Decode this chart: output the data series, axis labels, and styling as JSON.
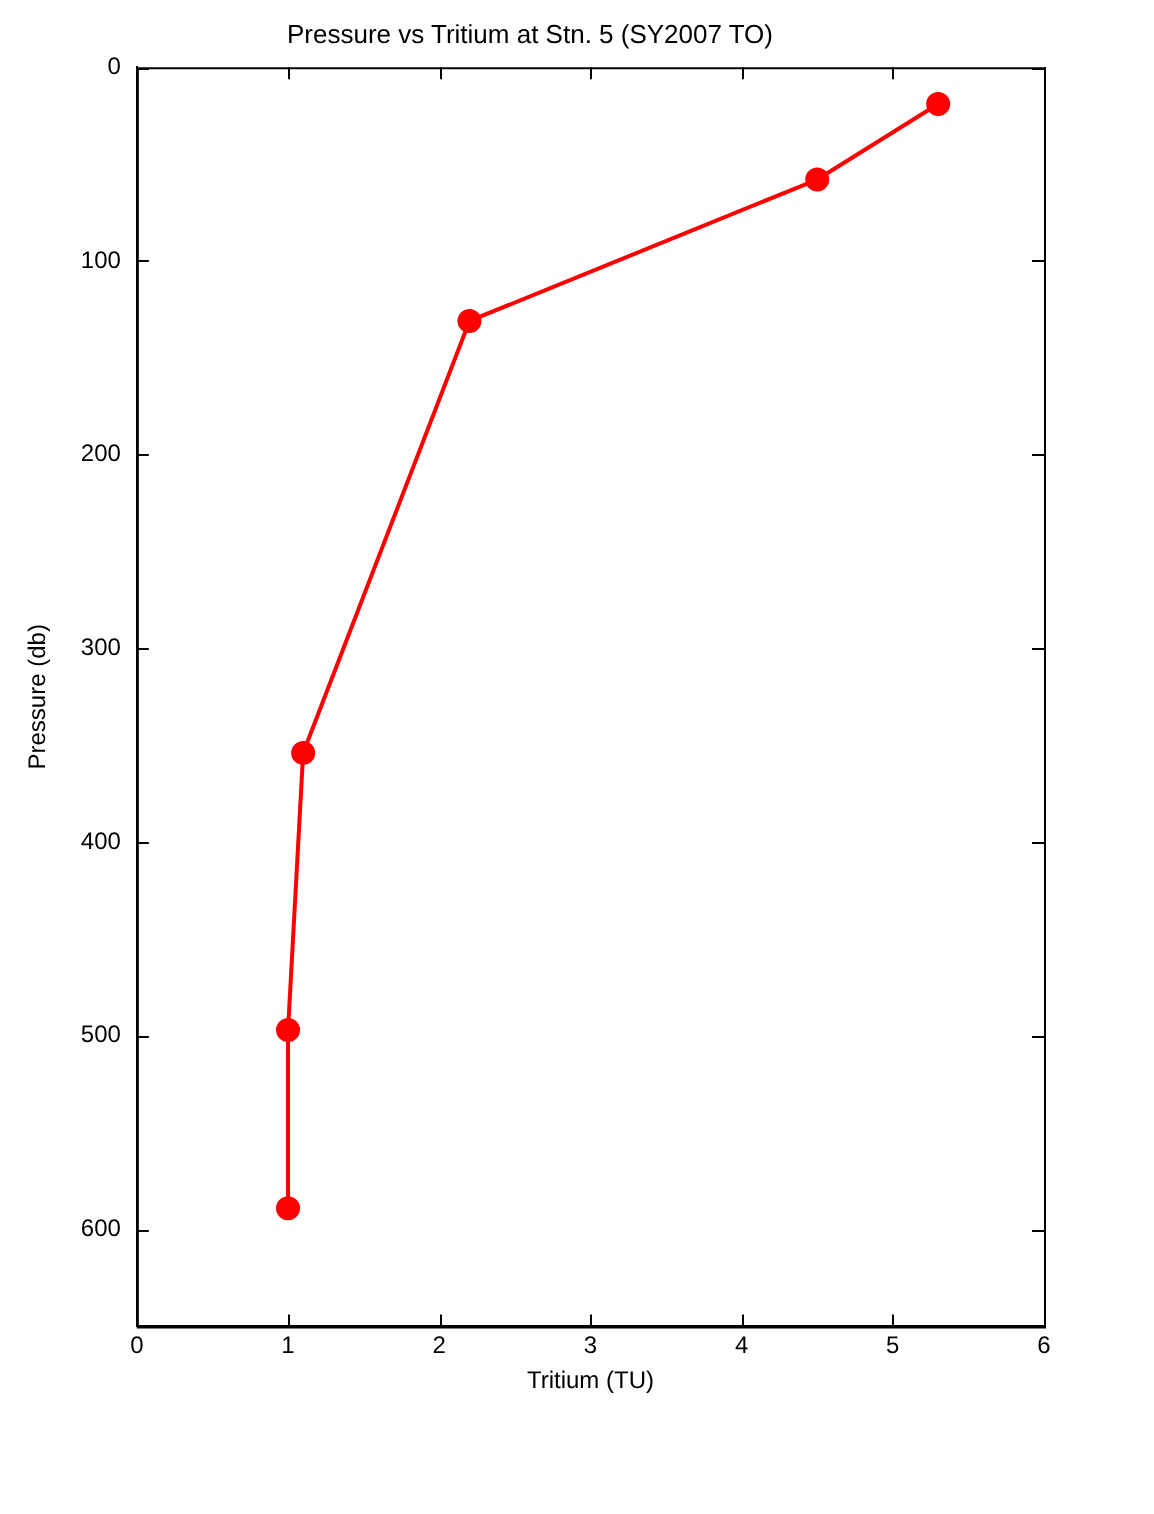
{
  "chart_data": {
    "type": "line",
    "title": "Pressure vs Tritium at Stn. 5 (SY2007 TO)",
    "xlabel": "Tritium (TU)",
    "ylabel": "Pressure (db)",
    "x": [
      5.3,
      4.5,
      2.2,
      1.1,
      1.0,
      1.0
    ],
    "series": [
      {
        "color": "#ff0000",
        "values": [
          19,
          58,
          131,
          354,
          497,
          589
        ]
      }
    ],
    "xlim": [
      0,
      6
    ],
    "xticks": [
      0,
      1,
      2,
      3,
      4,
      5,
      6
    ],
    "ylim": [
      650,
      0
    ],
    "yticks": [
      0,
      100,
      200,
      300,
      400,
      500,
      600
    ],
    "marker": "circle",
    "line_style": "solid",
    "legend": false,
    "grid": false
  }
}
